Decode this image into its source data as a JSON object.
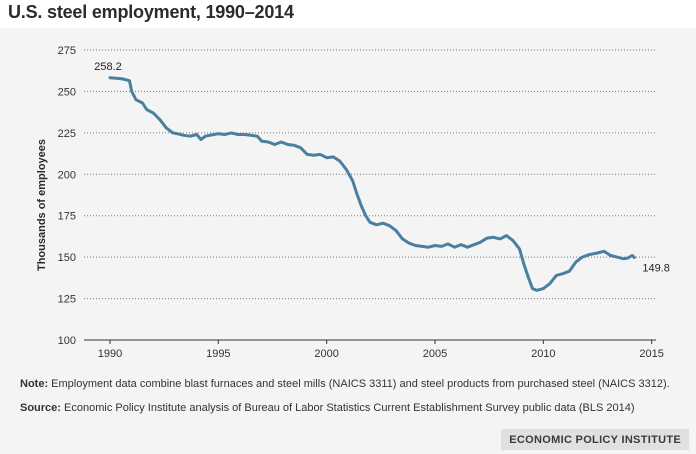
{
  "chart_data": {
    "type": "line",
    "title": "U.S. steel employment, 1990–2014",
    "xlabel": "",
    "ylabel": "Thousands of employees",
    "xlim": [
      1988.8,
      2015.2
    ],
    "ylim": [
      100,
      275
    ],
    "xticks": [
      1990,
      1995,
      2000,
      2005,
      2010,
      2015
    ],
    "yticks": [
      100,
      125,
      150,
      175,
      200,
      225,
      250,
      275
    ],
    "grid": true,
    "series": [
      {
        "name": "U.S. steel employment",
        "color": "#4a7fa0",
        "x": [
          1990.0,
          1990.3,
          1990.6,
          1990.9,
          1991.0,
          1991.2,
          1991.5,
          1991.7,
          1992.0,
          1992.3,
          1992.6,
          1992.9,
          1993.1,
          1993.4,
          1993.7,
          1994.0,
          1994.2,
          1994.4,
          1994.6,
          1994.8,
          1995.0,
          1995.3,
          1995.6,
          1995.9,
          1996.2,
          1996.5,
          1996.8,
          1997.0,
          1997.3,
          1997.6,
          1997.9,
          1998.2,
          1998.5,
          1998.8,
          1999.1,
          1999.4,
          1999.7,
          2000.0,
          2000.3,
          2000.6,
          2000.9,
          2001.2,
          2001.4,
          2001.6,
          2001.8,
          2002.0,
          2002.3,
          2002.6,
          2002.9,
          2003.2,
          2003.5,
          2003.8,
          2004.1,
          2004.4,
          2004.7,
          2005.0,
          2005.3,
          2005.6,
          2005.9,
          2006.2,
          2006.5,
          2006.8,
          2007.1,
          2007.4,
          2007.7,
          2008.0,
          2008.3,
          2008.6,
          2008.9,
          2009.1,
          2009.3,
          2009.5,
          2009.7,
          2010.0,
          2010.3,
          2010.6,
          2010.9,
          2011.2,
          2011.5,
          2011.8,
          2012.1,
          2012.3,
          2012.5,
          2012.8,
          2013.1,
          2013.4,
          2013.7,
          2013.9,
          2014.1,
          2014.2
        ],
        "y": [
          258.2,
          258.0,
          257.5,
          256.5,
          250.0,
          245.0,
          243.0,
          239.0,
          237.0,
          233.0,
          228.0,
          225.0,
          224.5,
          223.5,
          223.0,
          224.0,
          221.0,
          223.0,
          223.5,
          224.0,
          224.5,
          224.0,
          225.0,
          224.0,
          224.0,
          223.5,
          223.0,
          220.0,
          219.5,
          218.0,
          219.5,
          218.0,
          217.5,
          216.0,
          212.0,
          211.5,
          212.0,
          210.0,
          210.5,
          208.0,
          203.0,
          196.0,
          188.0,
          181.0,
          175.0,
          171.0,
          169.5,
          170.5,
          169.0,
          166.0,
          161.0,
          158.5,
          157.0,
          156.5,
          156.0,
          157.0,
          156.5,
          158.0,
          156.0,
          157.5,
          156.0,
          157.5,
          159.0,
          161.5,
          162.0,
          161.0,
          163.0,
          160.0,
          155.0,
          146.0,
          138.0,
          131.0,
          130.0,
          131.0,
          134.0,
          139.0,
          140.0,
          141.5,
          147.0,
          150.0,
          151.5,
          152.0,
          152.5,
          153.5,
          151.0,
          150.0,
          149.0,
          149.5,
          151.0,
          149.8
        ]
      }
    ],
    "annotations": [
      {
        "text": "258.2",
        "x": 1990.0,
        "y": 258.2,
        "position": "above"
      },
      {
        "text": "149.8",
        "x": 2014.2,
        "y": 149.8,
        "position": "right-below"
      }
    ]
  },
  "notes": {
    "note_label": "Note:",
    "note_text": "Employment data combine blast furnaces and steel mills (NAICS 3311) and steel products from purchased steel (NAICS 3312).",
    "source_label": "Source:",
    "source_text": "Economic Policy Institute analysis of Bureau of Labor Statistics Current Establishment Survey public data (BLS 2014)"
  },
  "brand": "ECONOMIC POLICY INSTITUTE",
  "colors": {
    "line": "#4a7fa0",
    "grid": "#777777",
    "panel": "#f4f4f4"
  }
}
